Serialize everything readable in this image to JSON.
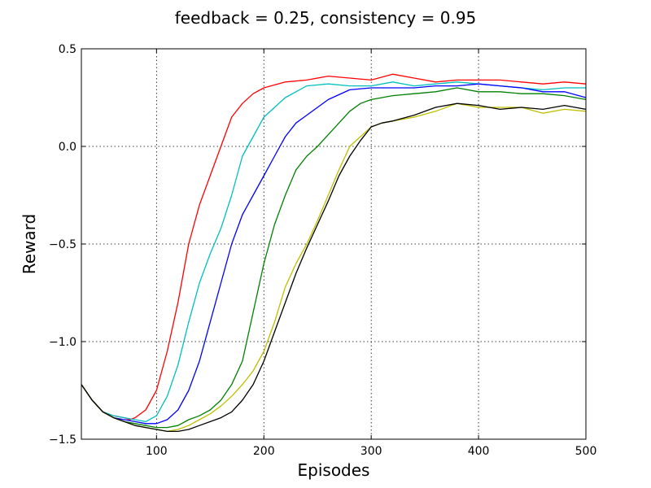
{
  "chart_data": {
    "type": "line",
    "title": "feedback = 0.25, consistency = 0.95",
    "xlabel": "Episodes",
    "ylabel": "Reward",
    "xlim": [
      30,
      500
    ],
    "ylim": [
      -1.5,
      0.5
    ],
    "xticks": [
      100,
      200,
      300,
      400,
      500
    ],
    "xtick_labels": [
      "100",
      "200",
      "300",
      "400",
      "500"
    ],
    "yticks": [
      -1.5,
      -1.0,
      -0.5,
      0.0,
      0.5
    ],
    "ytick_labels": [
      "−1.5",
      "−1.0",
      "−0.5",
      "0.0",
      "0.5"
    ],
    "grid": true,
    "series": [
      {
        "color": "#ff0000",
        "x": [
          30,
          40,
          50,
          60,
          70,
          75,
          80,
          90,
          100,
          110,
          120,
          130,
          140,
          150,
          160,
          170,
          180,
          190,
          200,
          220,
          240,
          260,
          280,
          300,
          320,
          340,
          360,
          380,
          400,
          420,
          440,
          460,
          480,
          500
        ],
        "y": [
          -1.22,
          -1.3,
          -1.36,
          -1.38,
          -1.39,
          -1.4,
          -1.39,
          -1.35,
          -1.25,
          -1.05,
          -0.8,
          -0.5,
          -0.3,
          -0.15,
          0.0,
          0.15,
          0.22,
          0.27,
          0.3,
          0.33,
          0.34,
          0.36,
          0.35,
          0.34,
          0.37,
          0.35,
          0.33,
          0.34,
          0.34,
          0.34,
          0.33,
          0.32,
          0.33,
          0.32
        ]
      },
      {
        "color": "#00bfbf",
        "x": [
          30,
          40,
          50,
          60,
          70,
          80,
          90,
          100,
          110,
          120,
          130,
          140,
          150,
          160,
          170,
          180,
          190,
          200,
          210,
          220,
          230,
          240,
          260,
          280,
          300,
          320,
          340,
          360,
          380,
          400,
          420,
          440,
          460,
          480,
          500
        ],
        "y": [
          -1.22,
          -1.3,
          -1.36,
          -1.38,
          -1.39,
          -1.4,
          -1.41,
          -1.38,
          -1.28,
          -1.12,
          -0.9,
          -0.7,
          -0.55,
          -0.42,
          -0.25,
          -0.05,
          0.05,
          0.15,
          0.2,
          0.25,
          0.28,
          0.31,
          0.32,
          0.31,
          0.31,
          0.33,
          0.31,
          0.32,
          0.33,
          0.32,
          0.31,
          0.3,
          0.29,
          0.3,
          0.3
        ]
      },
      {
        "color": "#0000ff",
        "x": [
          30,
          40,
          50,
          60,
          70,
          80,
          90,
          100,
          110,
          120,
          130,
          140,
          150,
          160,
          170,
          180,
          190,
          200,
          210,
          220,
          230,
          240,
          250,
          260,
          280,
          300,
          320,
          340,
          360,
          380,
          400,
          420,
          440,
          460,
          480,
          500
        ],
        "y": [
          -1.22,
          -1.3,
          -1.36,
          -1.39,
          -1.4,
          -1.41,
          -1.42,
          -1.42,
          -1.4,
          -1.35,
          -1.25,
          -1.1,
          -0.9,
          -0.7,
          -0.5,
          -0.35,
          -0.25,
          -0.15,
          -0.05,
          0.05,
          0.12,
          0.16,
          0.2,
          0.24,
          0.29,
          0.3,
          0.3,
          0.3,
          0.31,
          0.31,
          0.32,
          0.31,
          0.3,
          0.28,
          0.28,
          0.25
        ]
      },
      {
        "color": "#008000",
        "x": [
          30,
          40,
          50,
          60,
          70,
          80,
          90,
          100,
          110,
          120,
          130,
          140,
          150,
          160,
          170,
          180,
          190,
          200,
          210,
          220,
          230,
          240,
          250,
          260,
          270,
          280,
          290,
          300,
          320,
          340,
          360,
          380,
          400,
          420,
          440,
          460,
          480,
          500
        ],
        "y": [
          -1.22,
          -1.3,
          -1.36,
          -1.39,
          -1.41,
          -1.42,
          -1.43,
          -1.44,
          -1.44,
          -1.43,
          -1.4,
          -1.38,
          -1.35,
          -1.3,
          -1.22,
          -1.1,
          -0.85,
          -0.6,
          -0.4,
          -0.25,
          -0.12,
          -0.05,
          0.0,
          0.06,
          0.12,
          0.18,
          0.22,
          0.24,
          0.26,
          0.27,
          0.28,
          0.3,
          0.28,
          0.28,
          0.27,
          0.27,
          0.26,
          0.24
        ]
      },
      {
        "color": "#bfbf00",
        "x": [
          30,
          40,
          50,
          60,
          70,
          80,
          90,
          100,
          110,
          120,
          130,
          140,
          150,
          160,
          170,
          180,
          190,
          200,
          210,
          220,
          230,
          240,
          250,
          260,
          270,
          280,
          290,
          300,
          310,
          320,
          340,
          360,
          380,
          400,
          420,
          440,
          460,
          480,
          500
        ],
        "y": [
          -1.22,
          -1.3,
          -1.36,
          -1.39,
          -1.41,
          -1.43,
          -1.44,
          -1.45,
          -1.46,
          -1.45,
          -1.43,
          -1.4,
          -1.37,
          -1.33,
          -1.28,
          -1.22,
          -1.15,
          -1.05,
          -0.9,
          -0.72,
          -0.6,
          -0.5,
          -0.38,
          -0.25,
          -0.12,
          0.0,
          0.05,
          0.1,
          0.12,
          0.13,
          0.15,
          0.18,
          0.22,
          0.2,
          0.2,
          0.2,
          0.17,
          0.19,
          0.18
        ]
      },
      {
        "color": "#000000",
        "x": [
          30,
          40,
          50,
          60,
          70,
          80,
          90,
          100,
          110,
          120,
          130,
          140,
          150,
          160,
          170,
          180,
          190,
          200,
          210,
          220,
          230,
          240,
          250,
          260,
          270,
          280,
          290,
          300,
          310,
          320,
          340,
          360,
          380,
          400,
          420,
          440,
          460,
          480,
          500
        ],
        "y": [
          -1.22,
          -1.3,
          -1.36,
          -1.39,
          -1.41,
          -1.43,
          -1.44,
          -1.45,
          -1.46,
          -1.46,
          -1.45,
          -1.43,
          -1.41,
          -1.39,
          -1.36,
          -1.3,
          -1.22,
          -1.1,
          -0.95,
          -0.8,
          -0.65,
          -0.52,
          -0.4,
          -0.28,
          -0.15,
          -0.05,
          0.03,
          0.1,
          0.12,
          0.13,
          0.16,
          0.2,
          0.22,
          0.21,
          0.19,
          0.2,
          0.19,
          0.21,
          0.19
        ]
      }
    ]
  }
}
